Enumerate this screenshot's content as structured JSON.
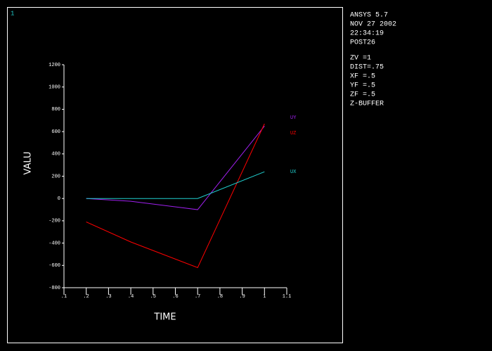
{
  "window_number": "1",
  "info": [
    "ANSYS 5.7",
    "NOV 27 2002",
    "22:34:19",
    "POST26",
    "ZV  =1",
    "DIST=.75",
    "XF  =.5",
    "YF  =.5",
    "ZF  =.5",
    "Z-BUFFER"
  ],
  "chart_data": {
    "type": "line",
    "x_label": "TIME",
    "y_label": "VALU",
    "x": [
      0.2,
      0.4,
      0.7,
      1.0
    ],
    "series": [
      {
        "name": "UY",
        "color": "#a020f0",
        "values": [
          0,
          -25,
          -100,
          650
        ]
      },
      {
        "name": "UZ",
        "color": "#ff0000",
        "values": [
          -210,
          -390,
          -620,
          670
        ]
      },
      {
        "name": "UX",
        "color": "#20d0d0",
        "values": [
          0,
          0,
          0,
          240
        ]
      }
    ],
    "xlim": [
      0.1,
      1.1
    ],
    "xticks": [
      {
        "value": 0.1,
        "label": ".1"
      },
      {
        "value": 0.2,
        "label": ".2"
      },
      {
        "value": 0.3,
        "label": ".3"
      },
      {
        "value": 0.4,
        "label": ".4"
      },
      {
        "value": 0.5,
        "label": ".5"
      },
      {
        "value": 0.6,
        "label": ".6"
      },
      {
        "value": 0.7,
        "label": ".7"
      },
      {
        "value": 0.8,
        "label": ".8"
      },
      {
        "value": 0.9,
        "label": ".9"
      },
      1,
      {
        "value": 1.1,
        "label": "1.1"
      }
    ],
    "ylim": [
      -800,
      1200
    ],
    "yticks": [
      -800,
      -600,
      -400,
      -200,
      0,
      200,
      400,
      600,
      800,
      1000,
      1200
    ]
  }
}
